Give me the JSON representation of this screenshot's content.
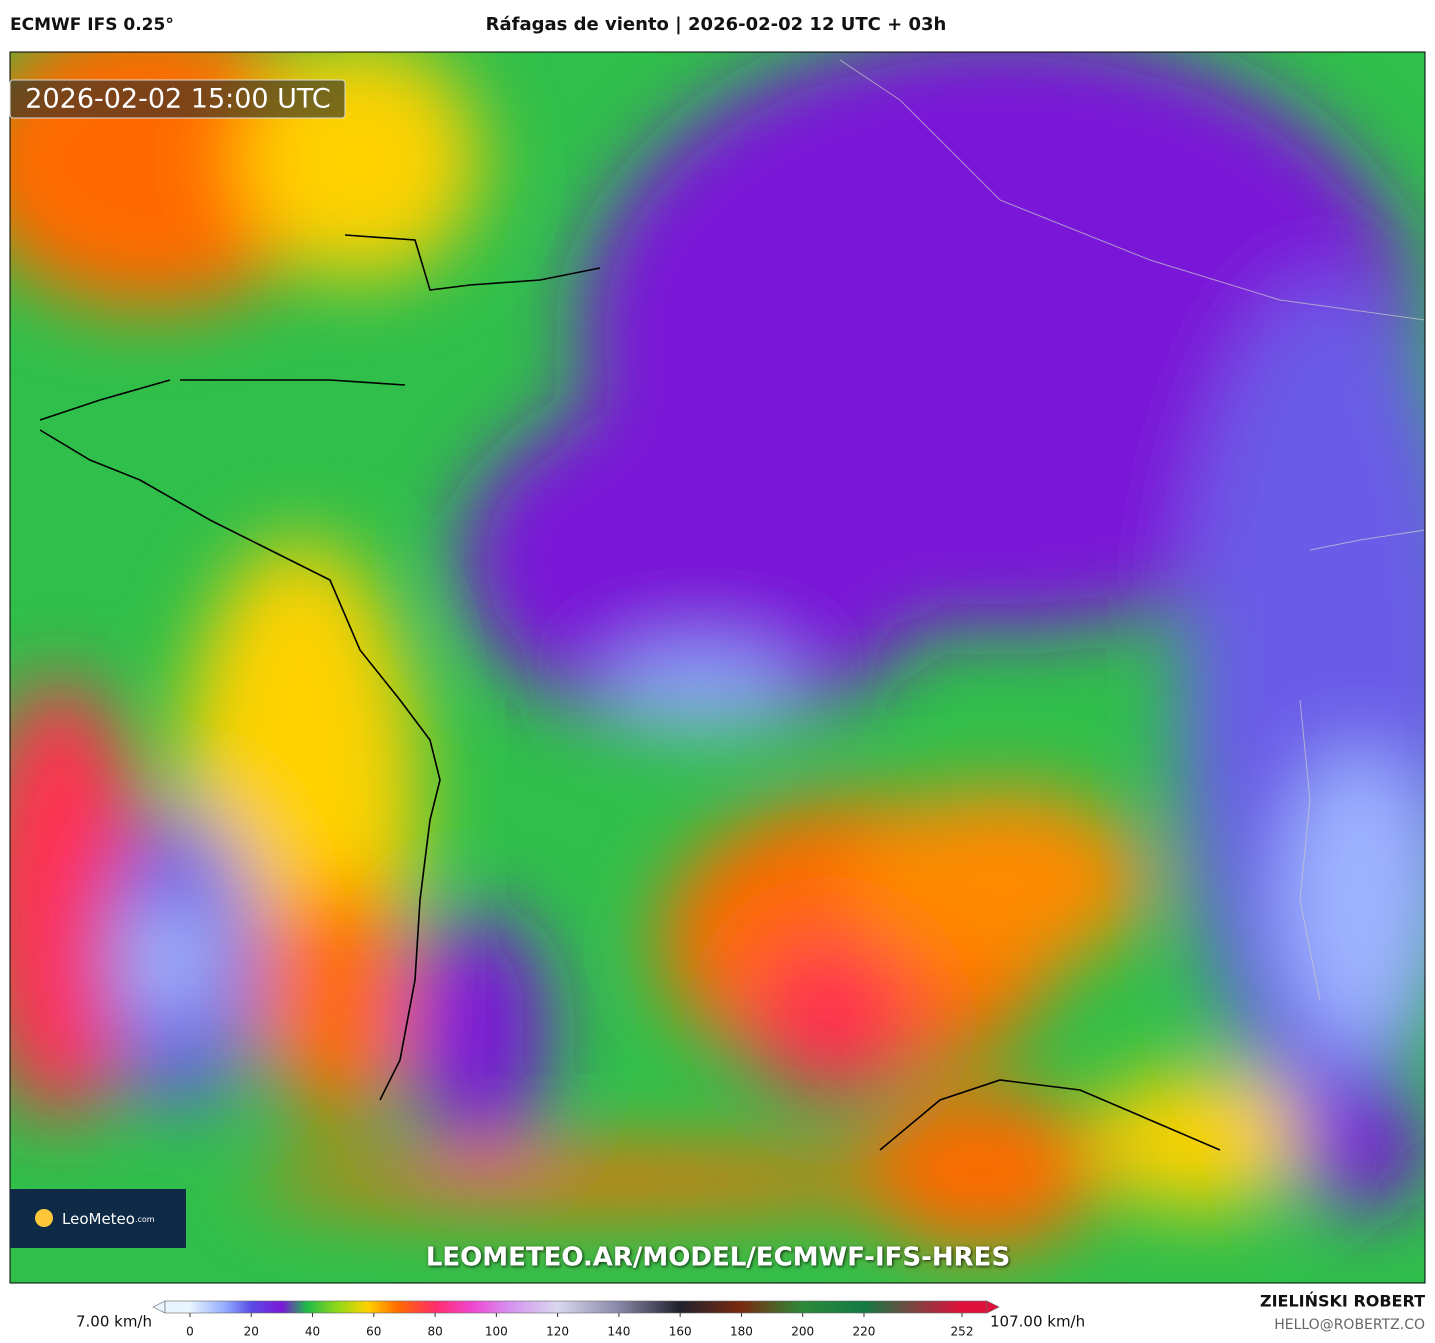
{
  "header": {
    "model": "ECMWF IFS 0.25°",
    "title": "Ráfagas de viento | 2026-02-02 12 UTC + 03h"
  },
  "map": {
    "timestamp": "2026-02-02 15:00 UTC",
    "watermark": "LEOMETEO.AR/MODEL/ECMWF-IFS-HRES",
    "logo": "LeoMeteo",
    "logo_suffix": ".com"
  },
  "colorbar": {
    "min_label": "7.00 km/h",
    "max_label": "107.00 km/h",
    "range": [
      0,
      252
    ],
    "ticks": [
      0,
      20,
      40,
      60,
      80,
      100,
      120,
      140,
      160,
      180,
      200,
      220,
      252
    ],
    "stops": [
      {
        "value": 0,
        "color": "#e8f4ff"
      },
      {
        "value": 12,
        "color": "#8fa8ff"
      },
      {
        "value": 20,
        "color": "#5a4ce6"
      },
      {
        "value": 30,
        "color": "#7a18d8"
      },
      {
        "value": 38,
        "color": "#1fb84a"
      },
      {
        "value": 48,
        "color": "#8fd81a"
      },
      {
        "value": 58,
        "color": "#ffd200"
      },
      {
        "value": 68,
        "color": "#ff6a00"
      },
      {
        "value": 80,
        "color": "#ff2d6a"
      },
      {
        "value": 92,
        "color": "#f046d0"
      },
      {
        "value": 104,
        "color": "#d590f0"
      },
      {
        "value": 120,
        "color": "#d8d8ee"
      },
      {
        "value": 140,
        "color": "#8888a8"
      },
      {
        "value": 160,
        "color": "#20202c"
      },
      {
        "value": 180,
        "color": "#7a2a10"
      },
      {
        "value": 200,
        "color": "#2e8a3a"
      },
      {
        "value": 220,
        "color": "#137a45"
      },
      {
        "value": 252,
        "color": "#e0103c"
      }
    ]
  },
  "credit": {
    "author": "ZIELIŃSKI ROBERT",
    "email": "HELLO@ROBERTZ.CO"
  }
}
